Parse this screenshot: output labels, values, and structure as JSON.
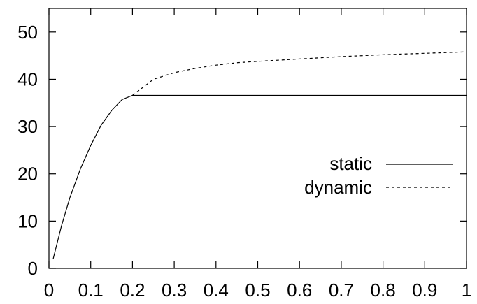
{
  "chart_data": {
    "type": "line",
    "title": "",
    "xlabel": "",
    "ylabel": "",
    "xlim": [
      0,
      1
    ],
    "ylim": [
      0,
      55
    ],
    "grid": false,
    "legend_position": "right",
    "x_ticks": [
      "0",
      "0.1",
      "0.2",
      "0.3",
      "0.4",
      "0.5",
      "0.6",
      "0.7",
      "0.8",
      "0.9",
      "1"
    ],
    "y_ticks": [
      "0",
      "10",
      "20",
      "30",
      "40",
      "50"
    ],
    "series": [
      {
        "name": "static",
        "style": "solid",
        "x": [
          0.01,
          0.03,
          0.05,
          0.075,
          0.1,
          0.125,
          0.15,
          0.175,
          0.2,
          1.0
        ],
        "y": [
          2.0,
          9.0,
          14.9,
          21.0,
          26.0,
          30.3,
          33.4,
          35.7,
          36.6,
          36.6
        ]
      },
      {
        "name": "dynamic",
        "style": "dashed",
        "x": [
          0.2,
          0.25,
          0.3,
          0.35,
          0.4,
          0.45,
          0.5,
          0.6,
          0.7,
          0.8,
          0.9,
          1.0
        ],
        "y": [
          36.6,
          40.0,
          41.4,
          42.3,
          43.0,
          43.5,
          43.8,
          44.3,
          44.8,
          45.2,
          45.5,
          45.8
        ]
      }
    ]
  }
}
